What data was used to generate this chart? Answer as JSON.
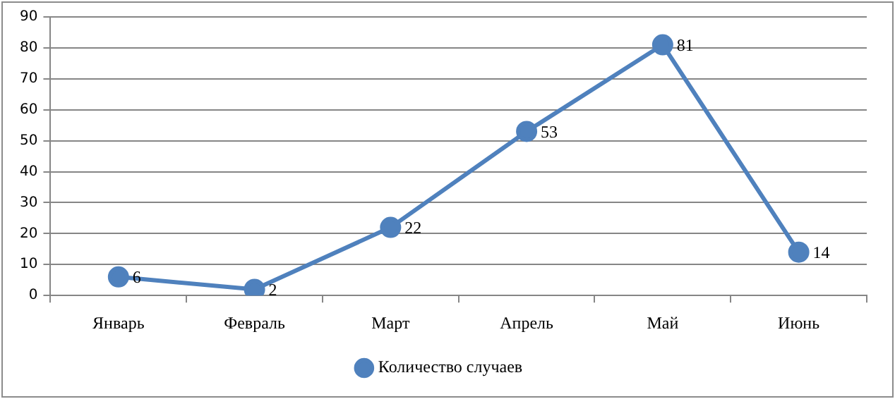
{
  "chart_data": {
    "type": "line",
    "categories": [
      "Январь",
      "Февраль",
      "Март",
      "Апрель",
      "Май",
      "Июнь"
    ],
    "series": [
      {
        "name": "Количество случаев",
        "color": "#4f81bd",
        "values": [
          6,
          2,
          22,
          53,
          81,
          14
        ]
      }
    ],
    "ylim": [
      0,
      90
    ],
    "yticks": [
      0,
      10,
      20,
      30,
      40,
      50,
      60,
      70,
      80,
      90
    ],
    "grid": "y",
    "legend": "bottom",
    "marker": "circle",
    "line_style": "solid",
    "data_labels": true
  }
}
